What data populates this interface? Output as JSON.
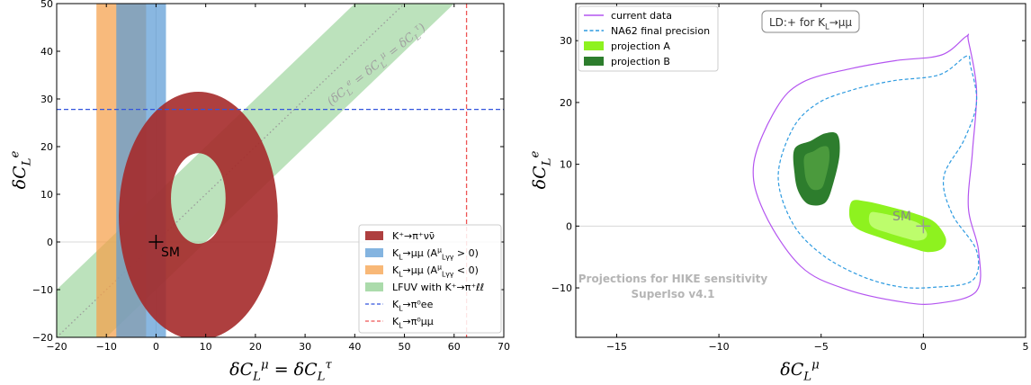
{
  "chart_data": [
    {
      "type": "area",
      "xlabel": "δC_L^μ = δC_L^τ",
      "ylabel": "δC_L^e",
      "xlim": [
        -20,
        70
      ],
      "ylim": [
        -20,
        50
      ],
      "xticks": [
        "−20",
        "−10",
        "0",
        "10",
        "20",
        "30",
        "40",
        "50",
        "60",
        "70"
      ],
      "yticks": [
        "−20",
        "−10",
        "0",
        "10",
        "20",
        "30",
        "40",
        "50"
      ],
      "diagonal_label": "(δC_L^e = δC_L^μ = δC_L^τ)",
      "sm_label": "SM",
      "sm_point": [
        0,
        0
      ],
      "legend_position": "lower-right",
      "series": [
        {
          "name": "K⁺→π⁺νν̄",
          "kind": "annulus",
          "center": [
            8.5,
            5.5
          ],
          "outer_radii": [
            16,
            26
          ],
          "inner_radii": [
            5.5,
            9.5
          ],
          "color": "#a52a2a"
        },
        {
          "name": "K_L→μμ (A^μ_{Lγγ} > 0)",
          "kind": "vband",
          "x": [
            -8,
            2
          ],
          "color": "#5b9bd5"
        },
        {
          "name": "K_L→μμ (A^μ_{Lγγ} < 0)",
          "kind": "vband",
          "x": [
            -12,
            -2
          ],
          "color": "#f5a04a"
        },
        {
          "name": "LFUV with K⁺→π⁺ℓℓ",
          "kind": "band",
          "lower": "y = x - 10",
          "upper": "y = x + 10",
          "color": "#8fcf8f"
        },
        {
          "name": "K_L→π⁰ee",
          "kind": "hline",
          "y": 27.8,
          "color": "#3355dd"
        },
        {
          "name": "K_L→π⁰μμ",
          "kind": "vline",
          "x": 62.5,
          "color": "#ee5555"
        }
      ]
    },
    {
      "type": "line",
      "xlabel": "δC_L^μ",
      "ylabel": "δC_L^e",
      "xlim": [
        -17,
        5
      ],
      "ylim": [
        -18,
        36
      ],
      "xticks": [
        "−15",
        "−10",
        "−5",
        "0",
        "5"
      ],
      "yticks": [
        "−10",
        "0",
        "10",
        "20",
        "30"
      ],
      "box_label": "LD:+ for K_L→μμ",
      "sm_label": "SM",
      "sm_point": [
        0,
        0
      ],
      "watermark": [
        "Projections for HIKE sensitivity",
        "SuperIso v4.1"
      ],
      "legend_position": "top-left",
      "series": [
        {
          "name": "current data",
          "kind": "contour",
          "color": "#b455f0",
          "points": [
            [
              2.1,
              30.7
            ],
            [
              0.9,
              27.7
            ],
            [
              -1.3,
              26.8
            ],
            [
              -3.5,
              25.5
            ],
            [
              -5.9,
              23.3
            ],
            [
              -7.2,
              19.0
            ],
            [
              -8.3,
              10.0
            ],
            [
              -7.8,
              2.3
            ],
            [
              -6.0,
              -6.5
            ],
            [
              -3.8,
              -10.2
            ],
            [
              -1.0,
              -12.3
            ],
            [
              0.7,
              -12.5
            ],
            [
              2.6,
              -10.5
            ],
            [
              2.7,
              -4.0
            ],
            [
              2.2,
              3.0
            ],
            [
              2.4,
              12.0
            ],
            [
              2.6,
              22.0
            ],
            [
              2.2,
              30.0
            ]
          ]
        },
        {
          "name": "NA62 final precision",
          "kind": "contour",
          "color": "#2e9be0",
          "points": [
            [
              2.1,
              27.5
            ],
            [
              0.8,
              24.5
            ],
            [
              -1.5,
              23.5
            ],
            [
              -3.5,
              22.0
            ],
            [
              -5.2,
              19.8
            ],
            [
              -6.4,
              15.7
            ],
            [
              -7.1,
              8.0
            ],
            [
              -6.4,
              0.5
            ],
            [
              -5.0,
              -4.5
            ],
            [
              -3.1,
              -8.0
            ],
            [
              -1.2,
              -9.8
            ],
            [
              0.5,
              -9.9
            ],
            [
              2.4,
              -8.8
            ],
            [
              2.6,
              -4.0
            ],
            [
              1.4,
              2.0
            ],
            [
              1.0,
              8.0
            ],
            [
              2.0,
              14.0
            ],
            [
              2.6,
              20.0
            ],
            [
              2.3,
              26.0
            ]
          ]
        },
        {
          "name": "projection A",
          "kind": "filled",
          "color": "#8ef21f",
          "points": [
            [
              -3.5,
              4.0
            ],
            [
              -2.8,
              4.0
            ],
            [
              -1.5,
              3.0
            ],
            [
              -0.2,
              1.8
            ],
            [
              0.6,
              0.5
            ],
            [
              1.1,
              -2.0
            ],
            [
              0.9,
              -3.7
            ],
            [
              0.2,
              -4.2
            ],
            [
              -0.6,
              -3.5
            ],
            [
              -2.0,
              -2.0
            ],
            [
              -3.2,
              -0.5
            ],
            [
              -3.6,
              1.3
            ]
          ]
        },
        {
          "name": "projection B",
          "kind": "filled",
          "color": "#2d7d2d",
          "points": [
            [
              -6.3,
              8.5
            ],
            [
              -6.3,
              12.5
            ],
            [
              -5.5,
              13.8
            ],
            [
              -4.8,
              15.0
            ],
            [
              -4.2,
              14.8
            ],
            [
              -4.1,
              11.5
            ],
            [
              -4.4,
              7.0
            ],
            [
              -4.8,
              3.8
            ],
            [
              -5.6,
              3.5
            ],
            [
              -6.1,
              5.5
            ]
          ]
        }
      ]
    }
  ]
}
